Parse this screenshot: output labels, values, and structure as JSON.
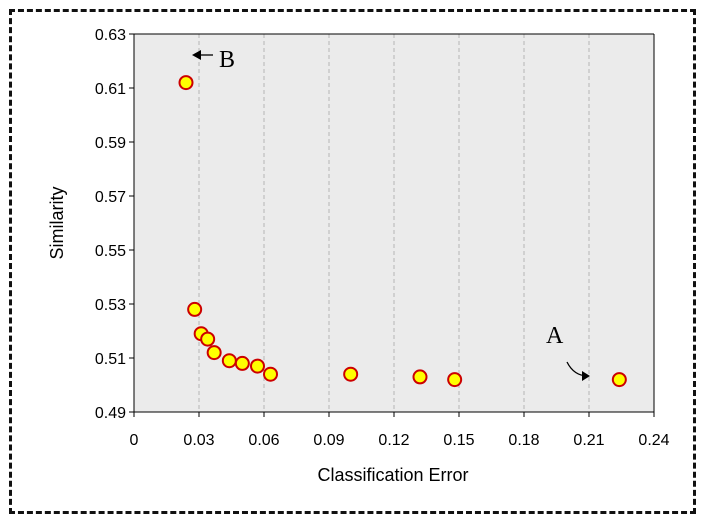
{
  "chart_data": {
    "type": "scatter",
    "title": "",
    "xlabel": "Classification Error",
    "ylabel": "Similarity",
    "xlim": [
      0,
      0.24
    ],
    "ylim": [
      0.49,
      0.63
    ],
    "x_ticks": [
      "0",
      "0.03",
      "0.06",
      "0.09",
      "0.12",
      "0.15",
      "0.18",
      "0.21",
      "0.24"
    ],
    "y_ticks": [
      "0.49",
      "0.51",
      "0.53",
      "0.55",
      "0.57",
      "0.59",
      "0.61",
      "0.63"
    ],
    "grid": "vertical dashed",
    "colors": {
      "plot_bg": "#ebebeb",
      "marker_fill": "#ffff00",
      "marker_edge": "#cc0000"
    },
    "series": [
      {
        "points": [
          {
            "x": 0.024,
            "y": 0.612
          },
          {
            "x": 0.028,
            "y": 0.528
          },
          {
            "x": 0.031,
            "y": 0.519
          },
          {
            "x": 0.034,
            "y": 0.517
          },
          {
            "x": 0.037,
            "y": 0.512
          },
          {
            "x": 0.044,
            "y": 0.509
          },
          {
            "x": 0.05,
            "y": 0.508
          },
          {
            "x": 0.057,
            "y": 0.507
          },
          {
            "x": 0.063,
            "y": 0.504
          },
          {
            "x": 0.1,
            "y": 0.504
          },
          {
            "x": 0.132,
            "y": 0.503
          },
          {
            "x": 0.148,
            "y": 0.502
          },
          {
            "x": 0.224,
            "y": 0.502
          }
        ]
      }
    ],
    "annotations": [
      {
        "label": "A"
      },
      {
        "label": "B"
      }
    ]
  }
}
